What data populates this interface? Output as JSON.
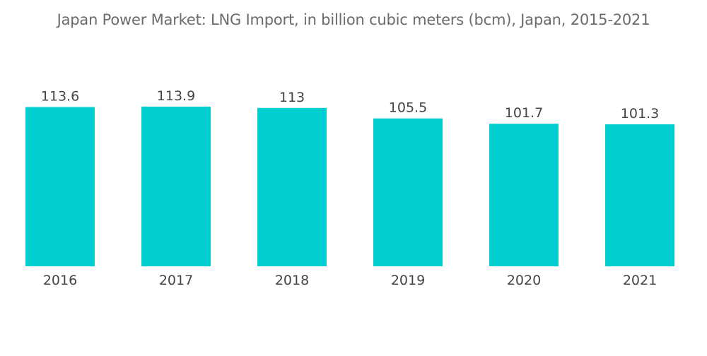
{
  "title": "Japan Power Market: LNG Import, in billion cubic meters (bcm), Japan, 2015-2021",
  "chart_data": {
    "type": "bar",
    "title": "Japan Power Market: LNG Import, in billion cubic meters (bcm), Japan, 2015-2021",
    "categories": [
      "2016",
      "2017",
      "2018",
      "2019",
      "2020",
      "2021"
    ],
    "values": [
      113.6,
      113.9,
      113,
      105.5,
      101.7,
      101.3
    ],
    "value_labels": [
      "113.6",
      "113.9",
      "113",
      "105.5",
      "101.7",
      "101.3"
    ],
    "xlabel": "",
    "ylabel": "",
    "ylim": [
      0,
      113.9
    ],
    "grid": false,
    "bar_color": "#00ced1"
  }
}
